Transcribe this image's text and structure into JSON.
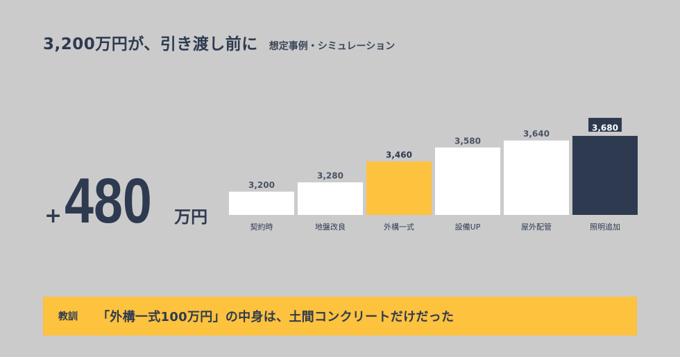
{
  "header": {
    "title": "3,200万円が、引き渡し前に",
    "subtitle": "想定事例・シミュレーション"
  },
  "increase": {
    "sign": "+",
    "value": "480",
    "unit": "万円"
  },
  "lesson": {
    "tag": "教訓",
    "text": "「外構一式100万円」の中身は、土間コンクリートだけだった"
  },
  "colors": {
    "background": "#cbcbcb",
    "navy": "#2e3a50",
    "accent": "#fdc23e",
    "bar_default": "#ffffff"
  },
  "chart_data": {
    "type": "bar",
    "categories": [
      "契約時",
      "地盤改良",
      "外構一式",
      "設備UP",
      "屋外配管",
      "照明追加"
    ],
    "values": [
      3200,
      3280,
      3460,
      3580,
      3640,
      3680
    ],
    "value_labels": [
      "3,200",
      "3,280",
      "3,460",
      "3,580",
      "3,640",
      "3,680"
    ],
    "bar_colors": [
      "#ffffff",
      "#ffffff",
      "#fdc23e",
      "#ffffff",
      "#ffffff",
      "#2e3a50"
    ],
    "highlighted_label_index": 5,
    "baseline": 3000,
    "title": "",
    "xlabel": "",
    "ylabel": "",
    "grid": false,
    "legend": "none"
  }
}
